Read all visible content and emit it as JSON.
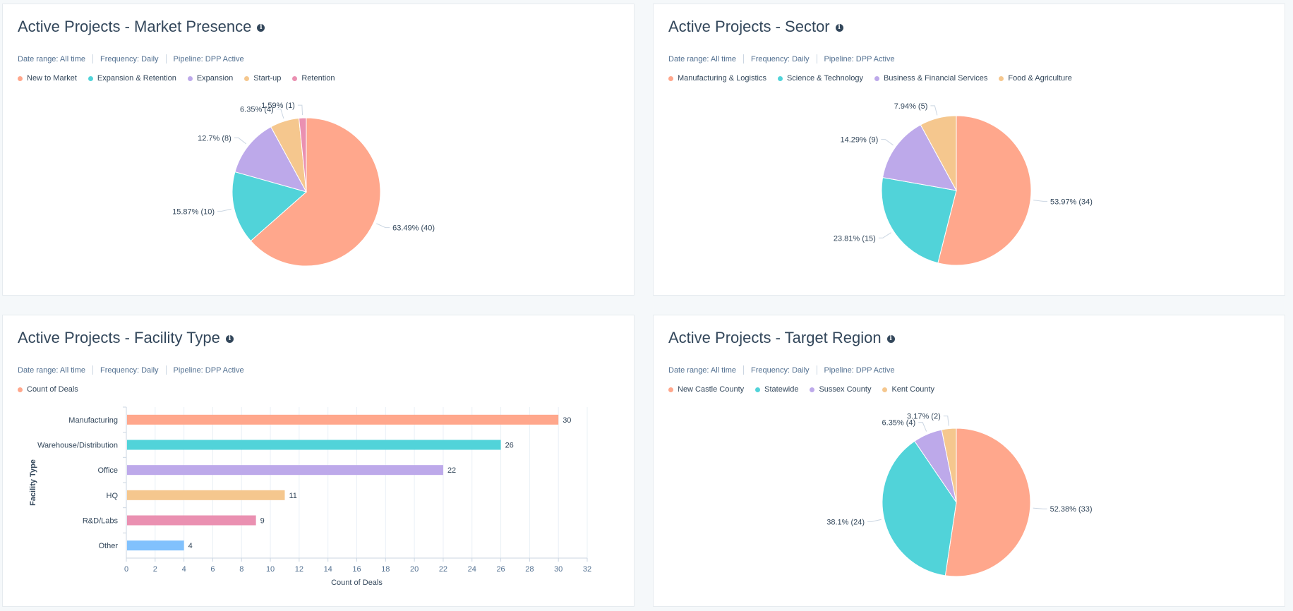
{
  "cards": [
    {
      "title": "Active Projects - Market Presence",
      "meta": [
        "Date range: All time",
        "Frequency: Daily",
        "Pipeline: DPP Active"
      ]
    },
    {
      "title": "Active Projects - Sector",
      "meta": [
        "Date range: All time",
        "Frequency: Daily",
        "Pipeline: DPP Active"
      ]
    },
    {
      "title": "Active Projects - Facility Type",
      "meta": [
        "Date range: All time",
        "Frequency: Daily",
        "Pipeline: DPP Active"
      ]
    },
    {
      "title": "Active Projects - Target Region",
      "meta": [
        "Date range: All time",
        "Frequency: Daily",
        "Pipeline: DPP Active"
      ]
    }
  ],
  "chart_data": [
    {
      "type": "pie",
      "title": "Active Projects - Market Presence",
      "legend_position": "top-left",
      "categories": [
        "New to Market",
        "Expansion & Retention",
        "Expansion",
        "Start-up",
        "Retention"
      ],
      "values": [
        40,
        10,
        8,
        4,
        1
      ],
      "labels": [
        "63.49% (40)",
        "15.87% (10)",
        "12.7% (8)",
        "6.35% (4)",
        "1.59% (1)"
      ],
      "colors": [
        "#ffa78c",
        "#51d3d9",
        "#bda9ea",
        "#f5c78e",
        "#ea90b1"
      ]
    },
    {
      "type": "pie",
      "title": "Active Projects - Sector",
      "legend_position": "top-left",
      "categories": [
        "Manufacturing & Logistics",
        "Science & Technology",
        "Business & Financial Services",
        "Food & Agriculture"
      ],
      "values": [
        34,
        15,
        9,
        5
      ],
      "labels": [
        "53.97% (34)",
        "23.81% (15)",
        "14.29% (9)",
        "7.94% (5)"
      ],
      "colors": [
        "#ffa78c",
        "#51d3d9",
        "#bda9ea",
        "#f5c78e"
      ]
    },
    {
      "type": "bar",
      "orientation": "horizontal",
      "title": "Active Projects - Facility Type",
      "legend_position": "top-left",
      "series": [
        {
          "name": "Count of Deals",
          "values": [
            30,
            26,
            22,
            11,
            9,
            4
          ]
        }
      ],
      "categories": [
        "Manufacturing",
        "Warehouse/Distribution",
        "Office",
        "HQ",
        "R&D/Labs",
        "Other"
      ],
      "colors": [
        "#ffa78c",
        "#51d3d9",
        "#bda9ea",
        "#f5c78e",
        "#ea90b1",
        "#81c1fd"
      ],
      "legend_color": "#ffa78c",
      "xlabel": "Count of Deals",
      "ylabel": "Facility Type",
      "xlim": [
        0,
        32
      ],
      "xticks": [
        0,
        2,
        4,
        6,
        8,
        10,
        12,
        14,
        16,
        18,
        20,
        22,
        24,
        26,
        28,
        30,
        32
      ],
      "grid": true
    },
    {
      "type": "pie",
      "title": "Active Projects - Target Region",
      "legend_position": "top-left",
      "categories": [
        "New Castle County",
        "Statewide",
        "Sussex County",
        "Kent County"
      ],
      "values": [
        33,
        24,
        4,
        2
      ],
      "labels": [
        "52.38% (33)",
        "38.1% (24)",
        "6.35% (4)",
        "3.17% (2)"
      ],
      "colors": [
        "#ffa78c",
        "#51d3d9",
        "#bda9ea",
        "#f5c78e"
      ]
    }
  ]
}
